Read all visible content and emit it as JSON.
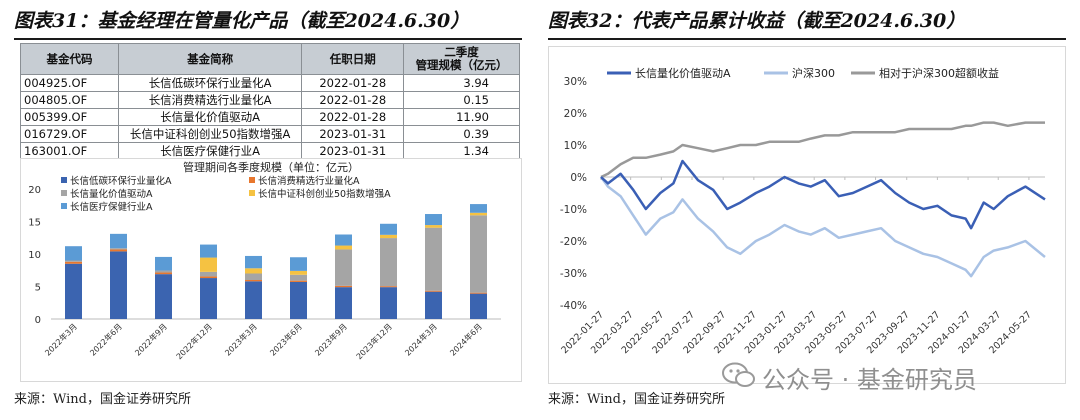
{
  "left": {
    "title": "图表31：基金经理在管量化产品（截至2024.6.30）",
    "source": "来源：Wind，国金证券研究所",
    "table": {
      "headers": [
        "基金代码",
        "基金简称",
        "任职日期",
        "二季度",
        "管理规模（亿元）"
      ],
      "rows": [
        [
          "004925.OF",
          "长信低碳环保行业量化A",
          "2022-01-28",
          "3.94"
        ],
        [
          "004805.OF",
          "长信消费精选行业量化A",
          "2022-01-28",
          "0.15"
        ],
        [
          "005399.OF",
          "长信量化价值驱动A",
          "2022-01-28",
          "11.90"
        ],
        [
          "016729.OF",
          "长信中证科创创业50指数增强A",
          "2023-01-31",
          "0.39"
        ],
        [
          "163001.OF",
          "长信医疗保健行业A",
          "2023-01-31",
          "1.34"
        ]
      ]
    }
  },
  "right": {
    "title": "图表32：代表产品累计收益（截至2024.6.30）",
    "source": "来源：Wind，国金证券研究所"
  },
  "watermark": "公众号 · 基金研究员",
  "chart_data": [
    {
      "type": "bar",
      "stacked": true,
      "title": "管理期间各季度规模（单位：亿元）",
      "categories": [
        "2022年3月",
        "2022年6月",
        "2022年9月",
        "2022年12月",
        "2023年3月",
        "2023年6月",
        "2023年9月",
        "2023年12月",
        "2024年3月",
        "2024年6月"
      ],
      "series": [
        {
          "name": "长信低碳环保行业量化A",
          "color": "#3b64b0",
          "values": [
            8.5,
            10.4,
            6.9,
            6.3,
            5.8,
            5.7,
            4.9,
            4.9,
            4.2,
            3.9
          ]
        },
        {
          "name": "长信消费精选行业量化A",
          "color": "#e8772e",
          "values": [
            0.3,
            0.3,
            0.25,
            0.25,
            0.2,
            0.2,
            0.2,
            0.15,
            0.15,
            0.15
          ]
        },
        {
          "name": "长信量化价值驱动A",
          "color": "#a5a5a5",
          "values": [
            0.2,
            0.2,
            0.3,
            0.7,
            1.0,
            0.9,
            5.6,
            7.4,
            9.7,
            11.9
          ]
        },
        {
          "name": "长信中证科创创业50指数增强A",
          "color": "#f5c242",
          "values": [
            0,
            0,
            0,
            2.2,
            0.8,
            0.6,
            0.6,
            0.5,
            0.4,
            0.39
          ]
        },
        {
          "name": "长信医疗保健行业A",
          "color": "#5b9bd5",
          "values": [
            2.2,
            2.2,
            2.1,
            2.0,
            1.9,
            2.1,
            1.7,
            1.7,
            1.7,
            1.34
          ]
        }
      ],
      "ylim": [
        0,
        20
      ],
      "yticks": [
        0,
        5,
        10,
        15,
        20
      ],
      "legend_position": "top-left"
    },
    {
      "type": "line",
      "x_ticks": [
        "2022-01-27",
        "2022-03-27",
        "2022-05-27",
        "2022-07-27",
        "2022-09-27",
        "2022-11-27",
        "2023-01-27",
        "2023-03-27",
        "2023-05-27",
        "2023-07-27",
        "2023-09-27",
        "2023-11-27",
        "2024-01-27",
        "2024-03-27",
        "2024-05-27"
      ],
      "ylim": [
        -40,
        30
      ],
      "yticks": [
        "30%",
        "20%",
        "10%",
        "0%",
        "-10%",
        "-20%",
        "-30%",
        "-40%"
      ],
      "legend_position": "top",
      "series": [
        {
          "name": "长信量化价值驱动A",
          "color": "#3a5fb5",
          "width": 2.5,
          "x": [
            "2022-01-27",
            "2022-02-10",
            "2022-03-07",
            "2022-04-01",
            "2022-04-26",
            "2022-05-25",
            "2022-06-20",
            "2022-07-08",
            "2022-08-08",
            "2022-09-07",
            "2022-10-05",
            "2022-10-31",
            "2022-12-01",
            "2022-12-28",
            "2023-01-27",
            "2023-02-24",
            "2023-03-20",
            "2023-04-17",
            "2023-05-15",
            "2023-06-12",
            "2023-07-10",
            "2023-08-07",
            "2023-09-04",
            "2023-10-02",
            "2023-10-30",
            "2023-11-27",
            "2023-12-25",
            "2024-01-22",
            "2024-02-02",
            "2024-02-27",
            "2024-03-18",
            "2024-04-15",
            "2024-05-20",
            "2024-06-28"
          ],
          "values": [
            0,
            -2,
            1,
            -4,
            -10,
            -5,
            -2,
            5,
            -1,
            -4,
            -10,
            -8,
            -5,
            -3,
            0,
            -2,
            -3,
            -1,
            -6,
            -5,
            -3,
            -1,
            -5,
            -8,
            -10,
            -9,
            -12,
            -13,
            -16,
            -8,
            -10,
            -6,
            -3,
            -7
          ]
        },
        {
          "name": "沪深300",
          "color": "#a9c2e5",
          "width": 2.5,
          "x": [
            "2022-01-27",
            "2022-02-10",
            "2022-03-07",
            "2022-04-01",
            "2022-04-26",
            "2022-05-25",
            "2022-06-20",
            "2022-07-08",
            "2022-08-08",
            "2022-09-07",
            "2022-10-05",
            "2022-10-31",
            "2022-12-01",
            "2022-12-28",
            "2023-01-27",
            "2023-02-24",
            "2023-03-20",
            "2023-04-17",
            "2023-05-15",
            "2023-06-12",
            "2023-07-10",
            "2023-08-07",
            "2023-09-04",
            "2023-10-02",
            "2023-10-30",
            "2023-11-27",
            "2023-12-25",
            "2024-01-22",
            "2024-02-02",
            "2024-02-27",
            "2024-03-18",
            "2024-04-15",
            "2024-05-20",
            "2024-06-28"
          ],
          "values": [
            0,
            -3,
            -6,
            -12,
            -18,
            -13,
            -11,
            -7,
            -13,
            -17,
            -22,
            -24,
            -20,
            -18,
            -15,
            -17,
            -18,
            -16,
            -19,
            -18,
            -17,
            -16,
            -20,
            -22,
            -24,
            -25,
            -27,
            -29,
            -31,
            -25,
            -23,
            -22,
            -20,
            -25
          ]
        },
        {
          "name": "相对于沪深300超额收益",
          "color": "#999999",
          "width": 2.5,
          "x": [
            "2022-01-27",
            "2022-02-10",
            "2022-03-07",
            "2022-04-01",
            "2022-04-26",
            "2022-05-25",
            "2022-06-20",
            "2022-07-08",
            "2022-08-08",
            "2022-09-07",
            "2022-10-05",
            "2022-10-31",
            "2022-12-01",
            "2022-12-28",
            "2023-01-27",
            "2023-02-24",
            "2023-03-20",
            "2023-04-17",
            "2023-05-15",
            "2023-06-12",
            "2023-07-10",
            "2023-08-07",
            "2023-09-04",
            "2023-10-02",
            "2023-10-30",
            "2023-11-27",
            "2023-12-25",
            "2024-01-22",
            "2024-02-02",
            "2024-02-27",
            "2024-03-18",
            "2024-04-15",
            "2024-05-20",
            "2024-06-28"
          ],
          "values": [
            0,
            1,
            4,
            6,
            6,
            7,
            8,
            10,
            9,
            8,
            9,
            10,
            10,
            11,
            11,
            11,
            12,
            13,
            13,
            14,
            14,
            14,
            14,
            15,
            15,
            15,
            15,
            16,
            16,
            17,
            17,
            16,
            17,
            17
          ]
        }
      ]
    }
  ]
}
